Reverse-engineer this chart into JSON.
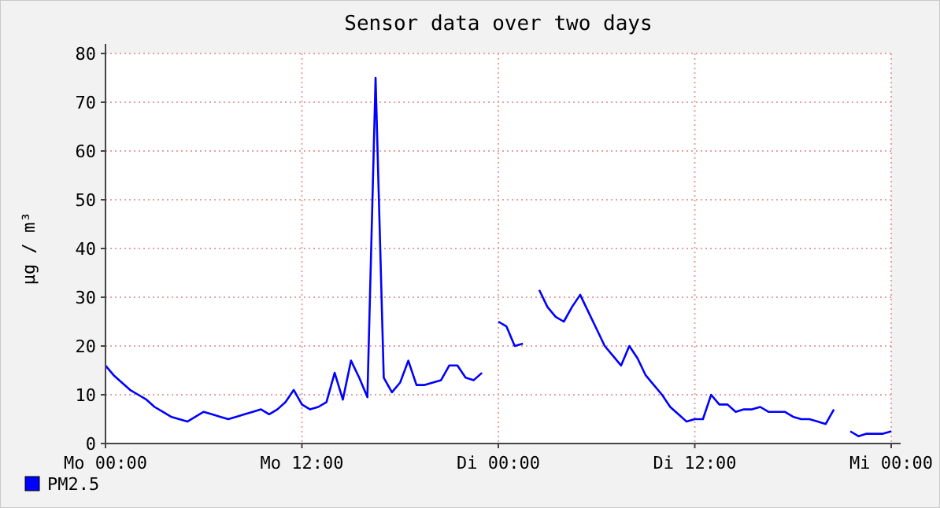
{
  "chart_data": {
    "type": "line",
    "title": "Sensor data over two days",
    "ylabel": "µg / m³",
    "categories": [
      "Mo 00:00",
      null,
      null,
      null,
      null,
      null,
      null,
      null,
      null,
      null,
      null,
      null,
      null,
      null,
      null,
      null,
      null,
      null,
      null,
      null,
      null,
      null,
      null,
      null,
      "Mo 12:00",
      null,
      null,
      null,
      null,
      null,
      null,
      null,
      null,
      null,
      null,
      null,
      null,
      null,
      null,
      null,
      null,
      null,
      null,
      null,
      null,
      null,
      null,
      null,
      "Di 00:00",
      null,
      null,
      null,
      null,
      null,
      null,
      null,
      null,
      null,
      null,
      null,
      null,
      null,
      null,
      null,
      null,
      null,
      null,
      null,
      null,
      null,
      null,
      null,
      "Di 12:00",
      null,
      null,
      null,
      null,
      null,
      null,
      null,
      null,
      null,
      null,
      null,
      null,
      null,
      null,
      null,
      null,
      null,
      null,
      null,
      null,
      null,
      null,
      null,
      "Mi 00:00"
    ],
    "ylim": [
      0,
      80
    ],
    "yticks": [
      0,
      10,
      20,
      30,
      40,
      50,
      60,
      70,
      80
    ],
    "grid": true,
    "legend": "bottom",
    "line_style": "solid",
    "series": [
      {
        "name": "PM2.5",
        "color": "#0000ff",
        "values": [
          16,
          14,
          12.5,
          11,
          10,
          9,
          7.5,
          6.5,
          5.5,
          5,
          4.5,
          5.5,
          6.5,
          6,
          5.5,
          5,
          5.5,
          6,
          6.5,
          7,
          6,
          7,
          8.5,
          11,
          8,
          7,
          7.5,
          8.5,
          14.5,
          9,
          17,
          13.5,
          9.5,
          75,
          13.5,
          10.5,
          12.5,
          17,
          12,
          12,
          12.5,
          13,
          16,
          16,
          13.5,
          13,
          14.5,
          null,
          25,
          24,
          20,
          20.5,
          null,
          31.5,
          28,
          26,
          25,
          28,
          30.5,
          27,
          23.5,
          20,
          18,
          16,
          20,
          17.5,
          14,
          12,
          10,
          7.5,
          6,
          4.5,
          5,
          5,
          10,
          8,
          8,
          6.5,
          7,
          7,
          7.5,
          6.5,
          6.5,
          6.5,
          5.5,
          5,
          5,
          4.5,
          4,
          7,
          null,
          2.5,
          1.5,
          2,
          2,
          2,
          2.5
        ]
      }
    ]
  }
}
